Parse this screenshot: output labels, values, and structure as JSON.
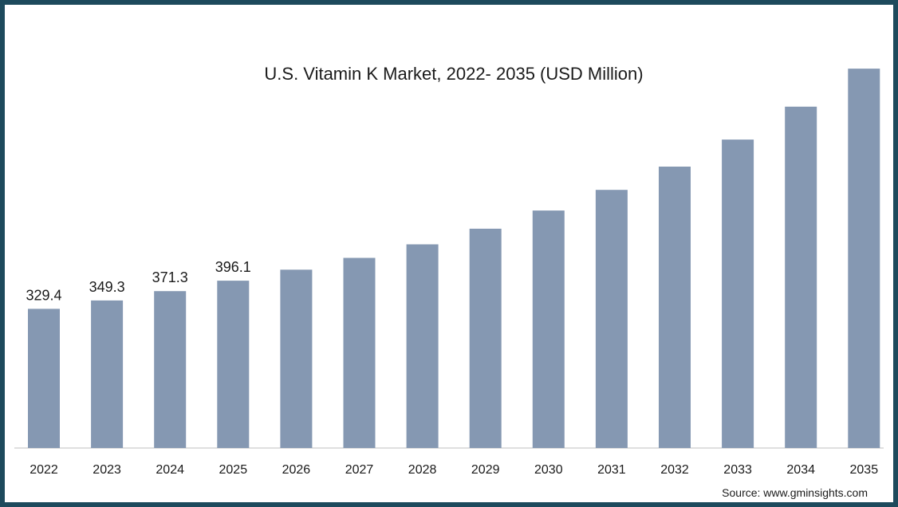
{
  "chart_data": {
    "type": "bar",
    "title": "U.S. Vitamin K Market, 2022- 2035 (USD Million)",
    "xlabel": "",
    "ylabel": "",
    "categories": [
      "2022",
      "2023",
      "2024",
      "2025",
      "2026",
      "2027",
      "2028",
      "2029",
      "2030",
      "2031",
      "2032",
      "2033",
      "2034",
      "2035"
    ],
    "values": [
      329.4,
      349.3,
      371.3,
      396.1,
      422,
      450,
      482,
      519,
      562,
      611,
      666,
      730,
      808,
      898
    ],
    "labeled_values": [
      "329.4",
      "349.3",
      "371.3",
      "396.1"
    ],
    "ylim": [
      0,
      1000
    ],
    "grid": false,
    "legend": "none",
    "bar_color": "#8598b2",
    "source": "Source: www.gminsights.com"
  }
}
